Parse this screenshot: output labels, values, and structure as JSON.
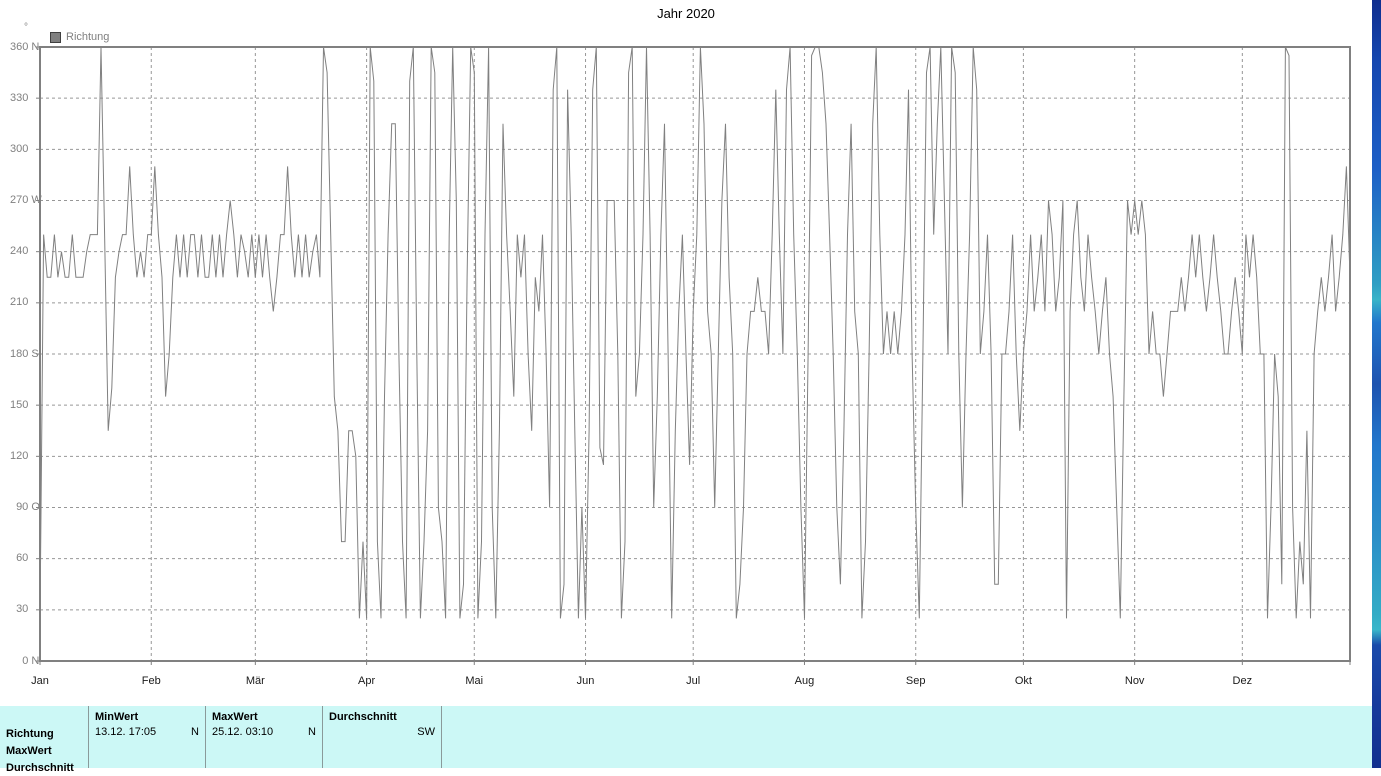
{
  "window": {
    "title": "Jahr 2020"
  },
  "legend": {
    "label": "Richtung",
    "swatch_color": "#808080"
  },
  "unit_symbol": "°",
  "colors": {
    "line": "#808080",
    "grid": "#979797",
    "frame": "#808080",
    "axis_text": "#808080",
    "month_text": "#1a1a1a",
    "table_bg": "#ccf8f6",
    "desktop_blue": "#1d5fc6"
  },
  "chart_data": {
    "type": "line",
    "title": "Jahr 2020",
    "series_name": "Richtung",
    "ylabel": "Richtung (°)",
    "ylim": [
      0,
      360
    ],
    "grid": true,
    "legend_position": "top-left",
    "y_ticks": [
      {
        "value": 360,
        "label": "360",
        "dir": "N"
      },
      {
        "value": 330,
        "label": "330",
        "dir": ""
      },
      {
        "value": 300,
        "label": "300",
        "dir": ""
      },
      {
        "value": 270,
        "label": "270",
        "dir": "W"
      },
      {
        "value": 240,
        "label": "240",
        "dir": ""
      },
      {
        "value": 210,
        "label": "210",
        "dir": ""
      },
      {
        "value": 180,
        "label": "180",
        "dir": "S"
      },
      {
        "value": 150,
        "label": "150",
        "dir": ""
      },
      {
        "value": 120,
        "label": "120",
        "dir": ""
      },
      {
        "value": 90,
        "label": "90",
        "dir": "O"
      },
      {
        "value": 60,
        "label": "60",
        "dir": ""
      },
      {
        "value": 30,
        "label": "30",
        "dir": ""
      },
      {
        "value": 0,
        "label": "0",
        "dir": "N"
      }
    ],
    "categories": [
      "Jan",
      "Feb",
      "Mär",
      "Apr",
      "Mai",
      "Jun",
      "Jul",
      "Aug",
      "Sep",
      "Okt",
      "Nov",
      "Dez"
    ],
    "month_start_days": [
      0,
      31,
      60,
      91,
      121,
      152,
      182,
      213,
      244,
      274,
      305,
      335
    ],
    "values": [
      25,
      250,
      225,
      225,
      250,
      225,
      240,
      225,
      225,
      250,
      225,
      225,
      225,
      240,
      250,
      250,
      250,
      360,
      250,
      135,
      160,
      225,
      240,
      250,
      250,
      290,
      250,
      225,
      240,
      225,
      250,
      250,
      290,
      250,
      225,
      155,
      180,
      225,
      250,
      225,
      250,
      225,
      250,
      250,
      225,
      250,
      225,
      225,
      250,
      225,
      250,
      225,
      250,
      270,
      250,
      225,
      250,
      240,
      225,
      250,
      225,
      250,
      225,
      250,
      225,
      205,
      225,
      250,
      250,
      290,
      250,
      225,
      250,
      225,
      250,
      225,
      240,
      250,
      225,
      360,
      345,
      250,
      155,
      135,
      70,
      70,
      135,
      135,
      120,
      25,
      70,
      25,
      360,
      340,
      70,
      25,
      155,
      250,
      315,
      315,
      180,
      70,
      25,
      340,
      360,
      180,
      25,
      70,
      135,
      360,
      345,
      90,
      70,
      25,
      250,
      360,
      270,
      25,
      45,
      225,
      360,
      345,
      25,
      70,
      250,
      360,
      90,
      25,
      135,
      315,
      250,
      205,
      155,
      250,
      225,
      250,
      180,
      135,
      225,
      205,
      250,
      180,
      90,
      335,
      360,
      25,
      45,
      335,
      250,
      135,
      25,
      90,
      25,
      135,
      335,
      360,
      125,
      115,
      270,
      270,
      270,
      180,
      25,
      70,
      345,
      360,
      155,
      180,
      250,
      360,
      250,
      90,
      155,
      250,
      315,
      180,
      25,
      135,
      205,
      250,
      180,
      115,
      205,
      250,
      360,
      315,
      205,
      180,
      90,
      180,
      270,
      315,
      225,
      180,
      25,
      45,
      90,
      180,
      205,
      205,
      225,
      205,
      205,
      180,
      250,
      335,
      250,
      180,
      335,
      360,
      250,
      180,
      90,
      25,
      180,
      355,
      360,
      360,
      345,
      315,
      250,
      180,
      90,
      45,
      135,
      250,
      315,
      205,
      180,
      25,
      70,
      180,
      315,
      360,
      250,
      180,
      205,
      180,
      205,
      180,
      205,
      250,
      335,
      180,
      90,
      25,
      180,
      345,
      360,
      250,
      315,
      360,
      270,
      180,
      360,
      345,
      180,
      90,
      180,
      250,
      360,
      335,
      180,
      205,
      250,
      180,
      45,
      45,
      180,
      180,
      205,
      250,
      180,
      135,
      180,
      205,
      250,
      205,
      225,
      250,
      205,
      270,
      250,
      205,
      225,
      270,
      25,
      205,
      250,
      270,
      225,
      205,
      250,
      225,
      205,
      180,
      205,
      225,
      180,
      155,
      90,
      25,
      155,
      270,
      250,
      270,
      250,
      270,
      250,
      180,
      205,
      180,
      180,
      155,
      180,
      205,
      205,
      205,
      225,
      205,
      225,
      250,
      225,
      250,
      225,
      205,
      225,
      250,
      225,
      205,
      180,
      180,
      205,
      225,
      205,
      180,
      250,
      225,
      250,
      225,
      180,
      180,
      25,
      90,
      180,
      155,
      45,
      360,
      355,
      90,
      25,
      70,
      45,
      135,
      25,
      180,
      205,
      225,
      205,
      225,
      250,
      205,
      225,
      250,
      290,
      225
    ]
  },
  "stats_table": {
    "row_labels": [
      "Richtung",
      "MaxWert",
      "Durchschnitt"
    ],
    "columns": [
      {
        "header": "MinWert",
        "value": "13.12.  17:05",
        "suffix": "N"
      },
      {
        "header": "MaxWert",
        "value": "25.12.  03:10",
        "suffix": "N"
      },
      {
        "header": "Durchschnitt",
        "value": "",
        "suffix": "SW"
      }
    ]
  }
}
